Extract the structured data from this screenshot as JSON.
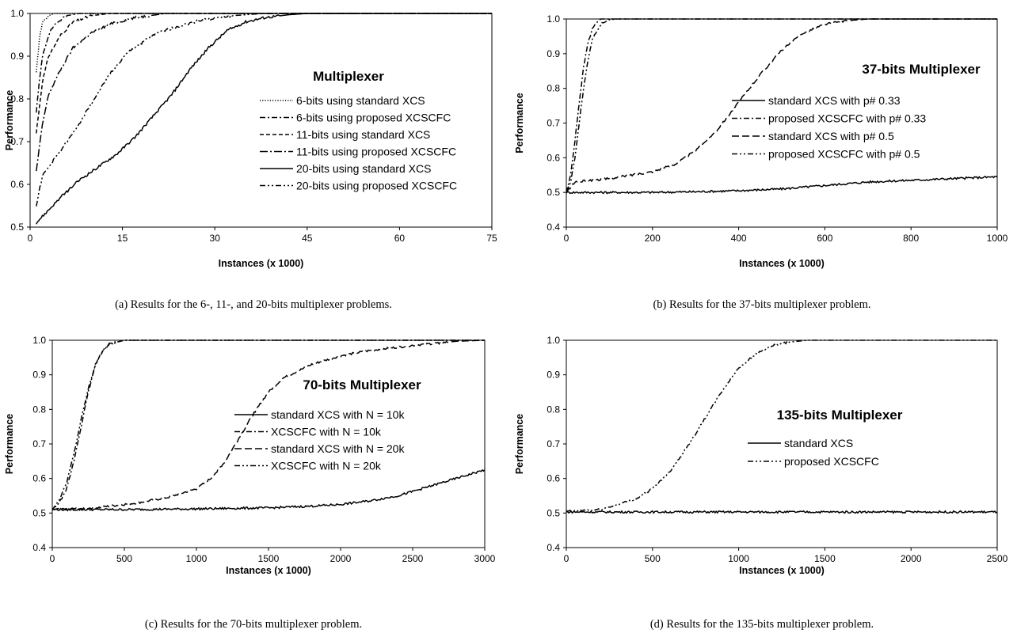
{
  "chart_data": [
    {
      "id": "a",
      "type": "line",
      "title": "Multiplexer",
      "xlabel": "Instances (x 1000)",
      "ylabel": "Performance",
      "xlim": [
        0,
        75
      ],
      "ylim": [
        0.5,
        1.0
      ],
      "xticks": [
        0,
        15,
        30,
        45,
        60,
        75
      ],
      "yticks": [
        0.5,
        0.6,
        0.7,
        0.8,
        0.9,
        1.0
      ],
      "ytick_format": 1,
      "grid": false,
      "legend_position": "center-right",
      "caption": "(a) Results for the 6-, 11-, and 20-bits multiplexer problems.",
      "series": [
        {
          "name": "6-bits using standard XCS",
          "dash": "dotted",
          "points": [
            [
              1,
              0.86
            ],
            [
              1.5,
              0.94
            ],
            [
              2,
              0.98
            ],
            [
              3,
              0.995
            ],
            [
              4,
              1.0
            ],
            [
              75,
              1.0
            ]
          ]
        },
        {
          "name": "6-bits using proposed XCSCFC",
          "dash": "dashdot",
          "points": [
            [
              1,
              0.77
            ],
            [
              1.5,
              0.84
            ],
            [
              2,
              0.9
            ],
            [
              3,
              0.95
            ],
            [
              4,
              0.975
            ],
            [
              6,
              0.995
            ],
            [
              8,
              1.0
            ],
            [
              75,
              1.0
            ]
          ]
        },
        {
          "name": "11-bits using standard XCS",
          "dash": "dashed",
          "points": [
            [
              1,
              0.72
            ],
            [
              2,
              0.84
            ],
            [
              3,
              0.9
            ],
            [
              5,
              0.95
            ],
            [
              7,
              0.98
            ],
            [
              10,
              0.995
            ],
            [
              13,
              1.0
            ],
            [
              75,
              1.0
            ]
          ]
        },
        {
          "name": "11-bits using proposed XCSCFC",
          "dash": "longdashdot",
          "points": [
            [
              1,
              0.63
            ],
            [
              2,
              0.74
            ],
            [
              3,
              0.81
            ],
            [
              5,
              0.87
            ],
            [
              7,
              0.92
            ],
            [
              10,
              0.955
            ],
            [
              13,
              0.975
            ],
            [
              17,
              0.99
            ],
            [
              22,
              1.0
            ],
            [
              75,
              1.0
            ]
          ]
        },
        {
          "name": "20-bits using standard XCS",
          "dash": "solid",
          "points": [
            [
              1,
              0.51
            ],
            [
              3,
              0.54
            ],
            [
              5,
              0.57
            ],
            [
              8,
              0.61
            ],
            [
              11,
              0.64
            ],
            [
              14,
              0.67
            ],
            [
              17,
              0.71
            ],
            [
              20,
              0.76
            ],
            [
              23,
              0.81
            ],
            [
              26,
              0.87
            ],
            [
              29,
              0.92
            ],
            [
              32,
              0.96
            ],
            [
              35,
              0.98
            ],
            [
              38,
              0.99
            ],
            [
              42,
              0.997
            ],
            [
              45,
              1.0
            ],
            [
              75,
              1.0
            ]
          ]
        },
        {
          "name": "20-bits using proposed XCSCFC",
          "dash": "dashdotdot",
          "points": [
            [
              1,
              0.55
            ],
            [
              2,
              0.62
            ],
            [
              4,
              0.66
            ],
            [
              7,
              0.72
            ],
            [
              10,
              0.79
            ],
            [
              13,
              0.86
            ],
            [
              16,
              0.91
            ],
            [
              20,
              0.95
            ],
            [
              24,
              0.97
            ],
            [
              28,
              0.985
            ],
            [
              33,
              0.995
            ],
            [
              38,
              1.0
            ],
            [
              75,
              1.0
            ]
          ]
        }
      ]
    },
    {
      "id": "b",
      "type": "line",
      "title": "37-bits Multiplexer",
      "xlabel": "Instances (x 1000)",
      "ylabel": "Performance",
      "xlim": [
        0,
        1000
      ],
      "ylim": [
        0.4,
        1.0
      ],
      "xticks": [
        0,
        200,
        400,
        600,
        800,
        1000
      ],
      "yticks": [
        0.4,
        0.5,
        0.6,
        0.7,
        0.8,
        0.9,
        1.0
      ],
      "ytick_format": 1,
      "grid": false,
      "legend_position": "center-right",
      "caption": "(b) Results for the 37-bits multiplexer problem.",
      "series": [
        {
          "name": "standard XCS with p# 0.33",
          "dash": "solid",
          "points": [
            [
              0,
              0.5
            ],
            [
              100,
              0.5
            ],
            [
              200,
              0.5
            ],
            [
              300,
              0.502
            ],
            [
              400,
              0.505
            ],
            [
              500,
              0.51
            ],
            [
              600,
              0.52
            ],
            [
              700,
              0.53
            ],
            [
              800,
              0.535
            ],
            [
              900,
              0.54
            ],
            [
              1000,
              0.545
            ]
          ]
        },
        {
          "name": "proposed XCSCFC with p# 0.33",
          "dash": "dashdot",
          "points": [
            [
              0,
              0.5
            ],
            [
              10,
              0.55
            ],
            [
              20,
              0.65
            ],
            [
              30,
              0.76
            ],
            [
              40,
              0.86
            ],
            [
              50,
              0.93
            ],
            [
              60,
              0.97
            ],
            [
              70,
              0.99
            ],
            [
              80,
              1.0
            ],
            [
              1000,
              1.0
            ]
          ]
        },
        {
          "name": "standard XCS with p# 0.5",
          "dash": "longdash",
          "points": [
            [
              0,
              0.5
            ],
            [
              20,
              0.53
            ],
            [
              100,
              0.54
            ],
            [
              200,
              0.56
            ],
            [
              250,
              0.58
            ],
            [
              300,
              0.62
            ],
            [
              350,
              0.68
            ],
            [
              400,
              0.76
            ],
            [
              450,
              0.84
            ],
            [
              500,
              0.91
            ],
            [
              550,
              0.96
            ],
            [
              600,
              0.985
            ],
            [
              650,
              0.995
            ],
            [
              700,
              1.0
            ],
            [
              1000,
              1.0
            ]
          ]
        },
        {
          "name": "proposed XCSCFC with p# 0.5",
          "dash": "dashdotdot",
          "points": [
            [
              0,
              0.5
            ],
            [
              10,
              0.53
            ],
            [
              20,
              0.6
            ],
            [
              30,
              0.7
            ],
            [
              40,
              0.8
            ],
            [
              50,
              0.88
            ],
            [
              60,
              0.94
            ],
            [
              80,
              0.985
            ],
            [
              100,
              0.998
            ],
            [
              120,
              1.0
            ],
            [
              1000,
              1.0
            ]
          ]
        }
      ]
    },
    {
      "id": "c",
      "type": "line",
      "title": "70-bits Multiplexer",
      "xlabel": "Instances (x 1000)",
      "ylabel": "Performance",
      "xlim": [
        0,
        3000
      ],
      "ylim": [
        0.4,
        1.0
      ],
      "xticks": [
        0,
        500,
        1000,
        1500,
        2000,
        2500,
        3000
      ],
      "yticks": [
        0.4,
        0.5,
        0.6,
        0.7,
        0.8,
        0.9,
        1.0
      ],
      "ytick_format": 1,
      "grid": false,
      "legend_position": "center-right",
      "caption": "(c) Results for the 70-bits multiplexer problem.",
      "series": [
        {
          "name": "standard XCS with N = 10k",
          "dash": "solid",
          "points": [
            [
              0,
              0.51
            ],
            [
              500,
              0.51
            ],
            [
              1000,
              0.512
            ],
            [
              1500,
              0.515
            ],
            [
              1800,
              0.52
            ],
            [
              2000,
              0.525
            ],
            [
              2200,
              0.535
            ],
            [
              2400,
              0.55
            ],
            [
              2600,
              0.575
            ],
            [
              2800,
              0.6
            ],
            [
              3000,
              0.625
            ]
          ]
        },
        {
          "name": "XCSCFC with N = 10k",
          "dash": "dashdot",
          "points": [
            [
              0,
              0.51
            ],
            [
              50,
              0.53
            ],
            [
              100,
              0.57
            ],
            [
              150,
              0.65
            ],
            [
              200,
              0.75
            ],
            [
              250,
              0.85
            ],
            [
              300,
              0.93
            ],
            [
              350,
              0.97
            ],
            [
              400,
              0.99
            ],
            [
              500,
              1.0
            ],
            [
              3000,
              1.0
            ]
          ]
        },
        {
          "name": "standard XCS with N = 20k",
          "dash": "longdash",
          "points": [
            [
              0,
              0.51
            ],
            [
              300,
              0.515
            ],
            [
              600,
              0.53
            ],
            [
              800,
              0.545
            ],
            [
              1000,
              0.57
            ],
            [
              1100,
              0.6
            ],
            [
              1200,
              0.65
            ],
            [
              1300,
              0.72
            ],
            [
              1400,
              0.79
            ],
            [
              1500,
              0.85
            ],
            [
              1600,
              0.89
            ],
            [
              1800,
              0.93
            ],
            [
              2000,
              0.955
            ],
            [
              2200,
              0.97
            ],
            [
              2500,
              0.985
            ],
            [
              2800,
              0.997
            ],
            [
              3000,
              1.0
            ]
          ]
        },
        {
          "name": "XCSCFC with N = 20k",
          "dash": "dashdotdot",
          "points": [
            [
              0,
              0.51
            ],
            [
              50,
              0.54
            ],
            [
              100,
              0.59
            ],
            [
              150,
              0.67
            ],
            [
              200,
              0.77
            ],
            [
              250,
              0.86
            ],
            [
              300,
              0.93
            ],
            [
              350,
              0.97
            ],
            [
              400,
              0.99
            ],
            [
              500,
              1.0
            ],
            [
              3000,
              1.0
            ]
          ]
        }
      ]
    },
    {
      "id": "d",
      "type": "line",
      "title": "135-bits Multiplexer",
      "xlabel": "Instances (x 1000)",
      "ylabel": "Performance",
      "xlim": [
        0,
        2500
      ],
      "ylim": [
        0.4,
        1.0
      ],
      "xticks": [
        0,
        500,
        1000,
        1500,
        2000,
        2500
      ],
      "yticks": [
        0.4,
        0.5,
        0.6,
        0.7,
        0.8,
        0.9,
        1.0
      ],
      "ytick_format": 1,
      "grid": false,
      "legend_position": "center-right",
      "caption": "(d) Results for the 135-bits multiplexer problem.",
      "series": [
        {
          "name": "standard XCS",
          "dash": "solid",
          "points": [
            [
              0,
              0.503
            ],
            [
              500,
              0.503
            ],
            [
              1000,
              0.503
            ],
            [
              1500,
              0.503
            ],
            [
              2000,
              0.503
            ],
            [
              2500,
              0.503
            ]
          ]
        },
        {
          "name": "proposed XCSCFC",
          "dash": "dashdotdot",
          "points": [
            [
              0,
              0.505
            ],
            [
              200,
              0.51
            ],
            [
              400,
              0.54
            ],
            [
              500,
              0.57
            ],
            [
              600,
              0.62
            ],
            [
              700,
              0.69
            ],
            [
              800,
              0.77
            ],
            [
              900,
              0.85
            ],
            [
              1000,
              0.92
            ],
            [
              1100,
              0.96
            ],
            [
              1200,
              0.985
            ],
            [
              1300,
              0.995
            ],
            [
              1400,
              1.0
            ],
            [
              2500,
              1.0
            ]
          ]
        }
      ]
    }
  ]
}
